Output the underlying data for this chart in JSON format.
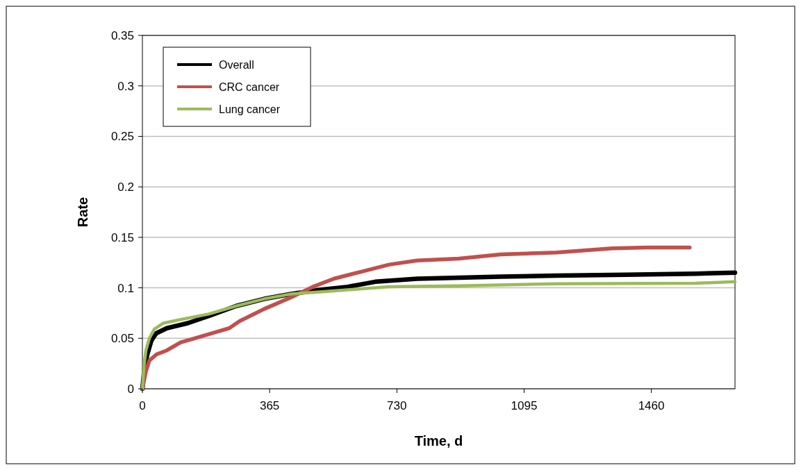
{
  "chart_data": {
    "type": "line",
    "xlabel": "Time, d",
    "ylabel": "Rate",
    "xlim": [
      0,
      1700
    ],
    "xticks": [
      0,
      365,
      730,
      1095,
      1460
    ],
    "ylim": [
      0,
      0.35
    ],
    "yticks": [
      0,
      0.05,
      0.1,
      0.15,
      0.2,
      0.25,
      0.3,
      0.35
    ],
    "grid": "y",
    "legend": "top left",
    "marker": "none",
    "line_style": "solid",
    "series": [
      {
        "name": "Overall",
        "color": "#000000",
        "x": [
          0,
          6,
          14,
          26,
          40,
          70,
          130,
          190,
          269,
          349,
          429,
          509,
          589,
          668,
          788,
          908,
          1027,
          1187,
          1386,
          1586,
          1700
        ],
        "values": [
          0,
          0.021,
          0.034,
          0.048,
          0.055,
          0.06,
          0.065,
          0.072,
          0.082,
          0.089,
          0.094,
          0.098,
          0.101,
          0.106,
          0.109,
          0.11,
          0.111,
          0.112,
          0.113,
          0.114,
          0.115
        ]
      },
      {
        "name": "CRC cancer",
        "color": "#c0504d",
        "x": [
          0,
          10,
          20,
          40,
          70,
          110,
          160,
          209,
          249,
          279,
          349,
          429,
          489,
          549,
          628,
          708,
          788,
          908,
          1027,
          1187,
          1267,
          1347,
          1446,
          1570
        ],
        "values": [
          0,
          0.017,
          0.028,
          0.034,
          0.038,
          0.046,
          0.051,
          0.056,
          0.06,
          0.067,
          0.079,
          0.091,
          0.101,
          0.109,
          0.116,
          0.123,
          0.127,
          0.129,
          0.133,
          0.135,
          0.137,
          0.139,
          0.14,
          0.14
        ]
      },
      {
        "name": "Lung cancer",
        "color": "#9bbb59",
        "x": [
          0,
          4,
          10,
          20,
          34,
          60,
          130,
          190,
          269,
          349,
          429,
          509,
          628,
          708,
          908,
          1187,
          1586,
          1700
        ],
        "values": [
          0,
          0.021,
          0.038,
          0.05,
          0.059,
          0.065,
          0.07,
          0.074,
          0.082,
          0.089,
          0.094,
          0.096,
          0.099,
          0.101,
          0.102,
          0.104,
          0.1045,
          0.106
        ]
      }
    ]
  }
}
